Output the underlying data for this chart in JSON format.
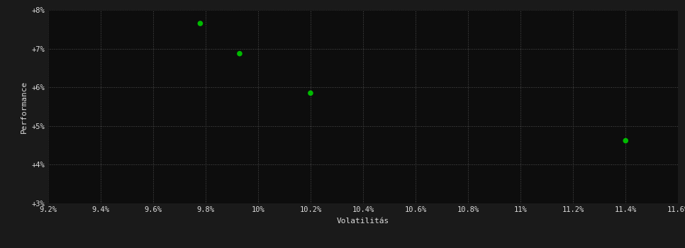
{
  "points_x": [
    9.78,
    9.93,
    10.2,
    11.4
  ],
  "points_y": [
    7.65,
    6.87,
    5.85,
    4.62
  ],
  "point_color": "#00bb00",
  "point_size": 30,
  "bg_color": "#1a1a1a",
  "plot_bg_color": "#0d0d0d",
  "grid_color": "#555555",
  "text_color": "#dddddd",
  "xlabel": "Volatilitás",
  "ylabel": "Performance",
  "xlim_min": 9.2,
  "xlim_max": 11.6,
  "ylim_min": 3.0,
  "ylim_max": 8.0,
  "xtick_labels": [
    "9.2%",
    "9.4%",
    "9.6%",
    "9.8%",
    "10%",
    "10.2%",
    "10.4%",
    "10.6%",
    "10.8%",
    "11%",
    "11.2%",
    "11.4%",
    "11.6%"
  ],
  "xtick_values": [
    9.2,
    9.4,
    9.6,
    9.8,
    10.0,
    10.2,
    10.4,
    10.6,
    10.8,
    11.0,
    11.2,
    11.4,
    11.6
  ],
  "ytick_labels": [
    "+3%",
    "+4%",
    "+5%",
    "+6%",
    "+7%",
    "+8%"
  ],
  "ytick_values": [
    3.0,
    4.0,
    5.0,
    6.0,
    7.0,
    8.0
  ],
  "axis_label_fontsize": 8,
  "tick_fontsize": 7.5
}
